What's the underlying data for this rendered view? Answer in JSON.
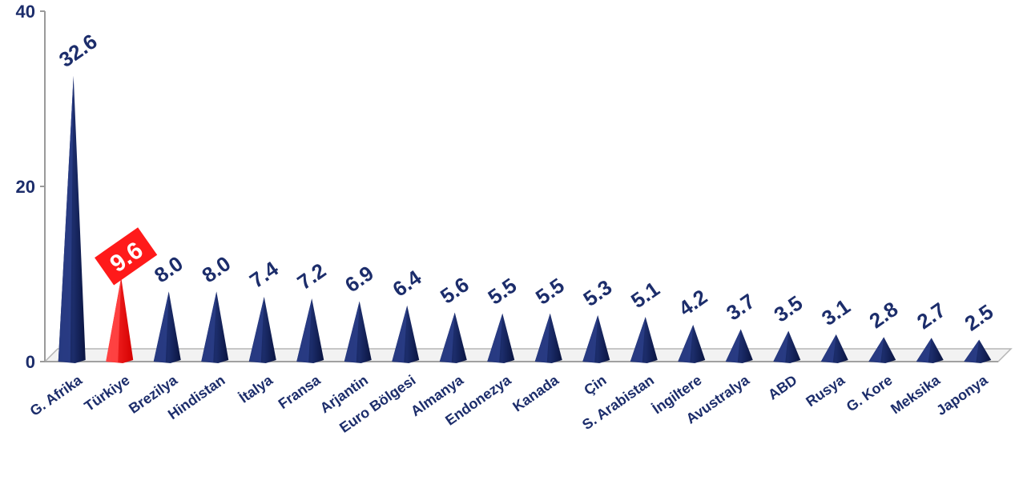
{
  "chart_data": {
    "type": "bar",
    "title": "",
    "xlabel": "",
    "ylabel": "",
    "categories": [
      "G. Afrika",
      "Türkiye",
      "Brezilya",
      "Hindistan",
      "İtalya",
      "Fransa",
      "Arjantin",
      "Euro Bölgesi",
      "Almanya",
      "Endonezya",
      "Kanada",
      "Çin",
      "S. Arabistan",
      "İngiltere",
      "Avustralya",
      "ABD",
      "Rusya",
      "G. Kore",
      "Meksika",
      "Japonya"
    ],
    "values": [
      32.6,
      9.6,
      8.0,
      8.0,
      7.4,
      7.2,
      6.9,
      6.4,
      5.6,
      5.5,
      5.5,
      5.3,
      5.1,
      4.2,
      3.7,
      3.5,
      3.1,
      2.8,
      2.7,
      2.5
    ],
    "value_labels": [
      "32.6",
      "9.6",
      "8.0",
      "8.0",
      "7.4",
      "7.2",
      "6.9",
      "6.4",
      "5.6",
      "5.5",
      "5.5",
      "5.3",
      "5.1",
      "4.2",
      "3.7",
      "3.5",
      "3.1",
      "2.8",
      "2.7",
      "2.5"
    ],
    "highlight_index": 1,
    "ylim": [
      0,
      40
    ],
    "yticks": [
      0,
      20,
      40
    ],
    "grid": false,
    "colors": {
      "bar": "#1c2d6b",
      "highlight": "#ff1a1a",
      "text": "#1c2d6b"
    }
  }
}
